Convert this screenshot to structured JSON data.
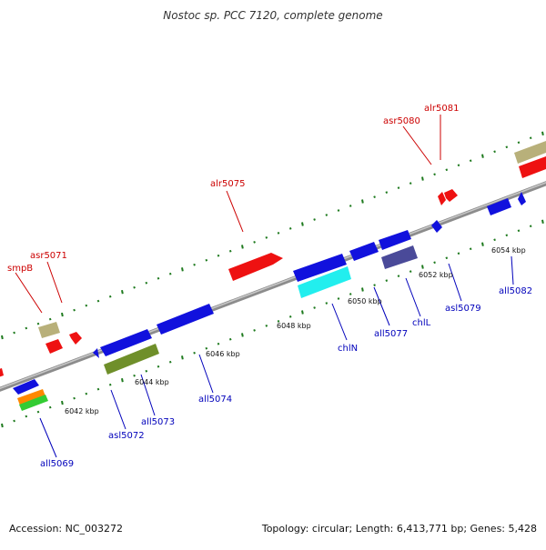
{
  "title": "Nostoc sp. PCC 7120, complete genome",
  "footer": {
    "accession": "Accession: NC_003272",
    "summary": "Topology: circular; Length: 6,413,771 bp; Genes: 5,428"
  },
  "colors": {
    "backbone": "#8c8c8c",
    "tick": "#1e7a1e",
    "label_forward": "#cc0000",
    "label_reverse": "#0000bb",
    "gene_forward": "#ee1111",
    "gene_reverse": "#1111dd",
    "gene_khaki": "#b8b07a",
    "gene_olive": "#6f8f2a",
    "gene_cyan": "#22eeee",
    "gene_slate": "#4a4a99",
    "gene_orange": "#ff8800",
    "gene_green": "#33cc33"
  },
  "kbp_labels": [
    "6042 kbp",
    "6044 kbp",
    "6046 kbp",
    "6048 kbp",
    "6050 kbp",
    "6052 kbp",
    "6054 kbp"
  ],
  "forward_labels": [
    "smpB",
    "asr5071",
    "alr5075",
    "asr5080",
    "alr5081"
  ],
  "reverse_labels": [
    "all5069",
    "asl5072",
    "all5073",
    "all5074",
    "chlN",
    "all5077",
    "chlL",
    "asl5079",
    "all5082"
  ]
}
